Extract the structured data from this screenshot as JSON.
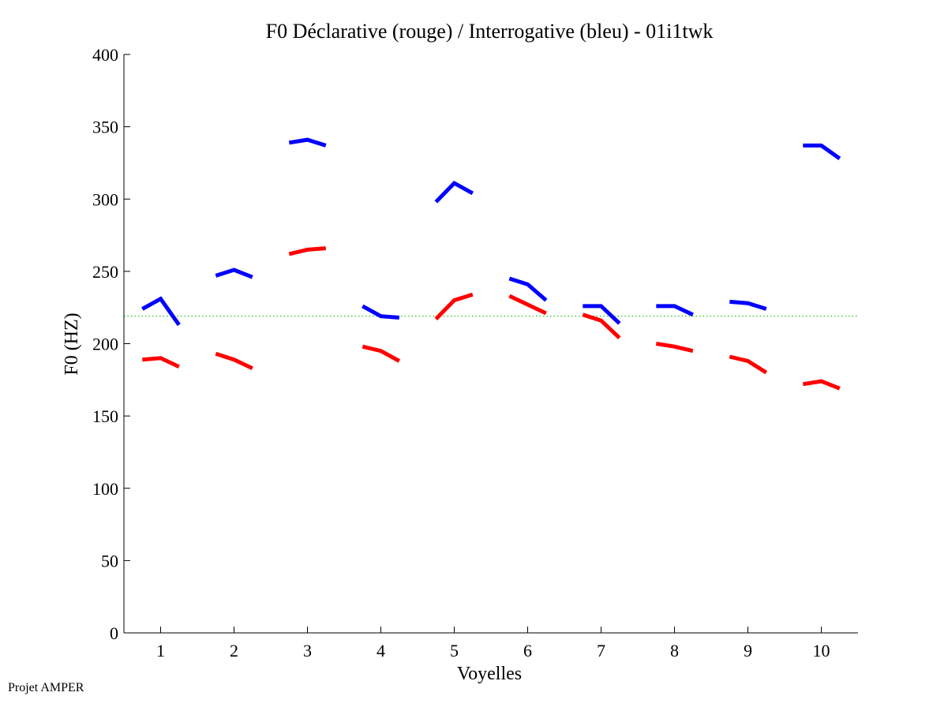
{
  "footer_text": "Projet AMPER",
  "colors": {
    "declarative": "#ff0000",
    "interrogative": "#0000ff",
    "reference": "#00c000",
    "axis": "#000000"
  },
  "chart_data": {
    "type": "line",
    "title": "F0 Déclarative (rouge) / Interrogative (bleu) - 01i1twk",
    "xlabel": "Voyelles",
    "ylabel": "F0 (HZ)",
    "xlim": [
      0.5,
      10.5
    ],
    "ylim": [
      0,
      400
    ],
    "x_ticks": [
      1,
      2,
      3,
      4,
      5,
      6,
      7,
      8,
      9,
      10
    ],
    "y_ticks": [
      0,
      50,
      100,
      150,
      200,
      250,
      300,
      350,
      400
    ],
    "grid": false,
    "reference_line": {
      "y": 219,
      "style": "dotted"
    },
    "series": [
      {
        "name": "Déclarative (rouge)",
        "color": "#ff0000",
        "segments": [
          [
            [
              0.75,
              189
            ],
            [
              1.0,
              190
            ],
            [
              1.25,
              184
            ]
          ],
          [
            [
              1.75,
              193
            ],
            [
              2.0,
              189
            ],
            [
              2.25,
              183
            ]
          ],
          [
            [
              2.75,
              262
            ],
            [
              3.0,
              265
            ],
            [
              3.25,
              266
            ]
          ],
          [
            [
              3.75,
              198
            ],
            [
              4.0,
              195
            ],
            [
              4.25,
              188
            ]
          ],
          [
            [
              4.75,
              217
            ],
            [
              5.0,
              230
            ],
            [
              5.25,
              234
            ]
          ],
          [
            [
              5.75,
              233
            ],
            [
              6.0,
              227
            ],
            [
              6.25,
              221
            ]
          ],
          [
            [
              6.75,
              220
            ],
            [
              7.0,
              216
            ],
            [
              7.25,
              204
            ]
          ],
          [
            [
              7.75,
              200
            ],
            [
              8.0,
              198
            ],
            [
              8.25,
              195
            ]
          ],
          [
            [
              8.75,
              191
            ],
            [
              9.0,
              188
            ],
            [
              9.25,
              180
            ]
          ],
          [
            [
              9.75,
              172
            ],
            [
              10.0,
              174
            ],
            [
              10.25,
              169
            ]
          ]
        ]
      },
      {
        "name": "Interrogative (bleu)",
        "color": "#0000ff",
        "segments": [
          [
            [
              0.75,
              224
            ],
            [
              1.0,
              231
            ],
            [
              1.25,
              213
            ]
          ],
          [
            [
              1.75,
              247
            ],
            [
              2.0,
              251
            ],
            [
              2.25,
              246
            ]
          ],
          [
            [
              2.75,
              339
            ],
            [
              3.0,
              341
            ],
            [
              3.25,
              337
            ]
          ],
          [
            [
              3.75,
              226
            ],
            [
              4.0,
              219
            ],
            [
              4.25,
              218
            ]
          ],
          [
            [
              4.75,
              298
            ],
            [
              5.0,
              311
            ],
            [
              5.25,
              304
            ]
          ],
          [
            [
              5.75,
              245
            ],
            [
              6.0,
              241
            ],
            [
              6.25,
              230
            ]
          ],
          [
            [
              6.75,
              226
            ],
            [
              7.0,
              226
            ],
            [
              7.25,
              214
            ]
          ],
          [
            [
              7.75,
              226
            ],
            [
              8.0,
              226
            ],
            [
              8.25,
              220
            ]
          ],
          [
            [
              8.75,
              229
            ],
            [
              9.0,
              228
            ],
            [
              9.25,
              224
            ]
          ],
          [
            [
              9.75,
              337
            ],
            [
              10.0,
              337
            ],
            [
              10.25,
              328
            ]
          ]
        ]
      }
    ]
  }
}
